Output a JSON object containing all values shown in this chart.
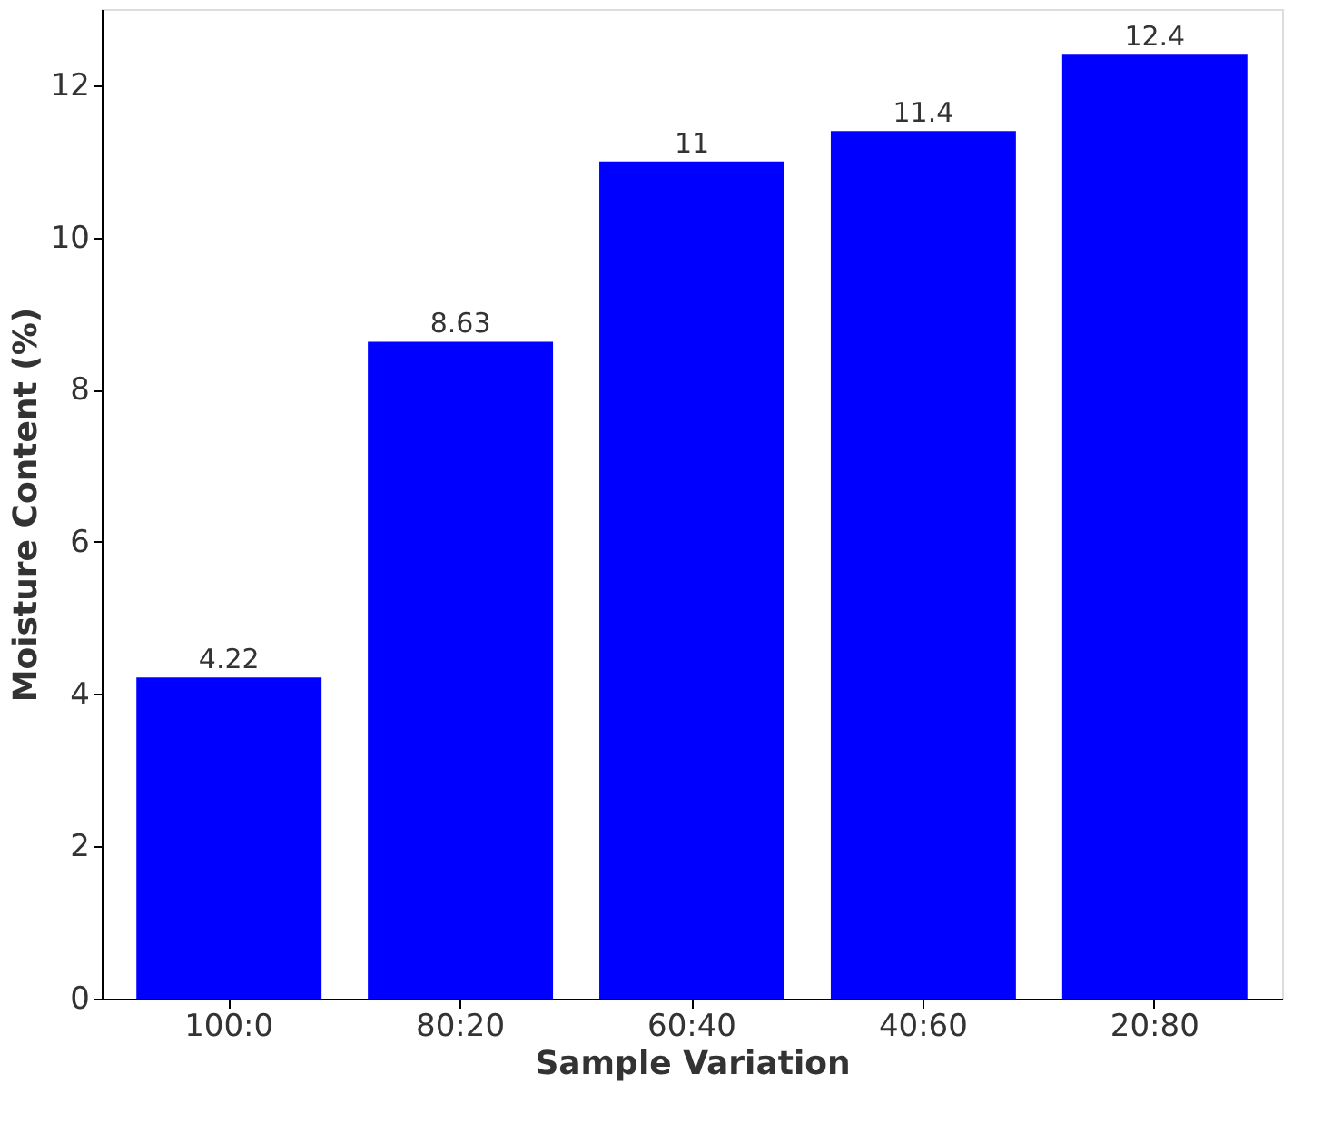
{
  "chart_data": {
    "type": "bar",
    "xlabel": "Sample Variation",
    "ylabel": "Moisture Content (%)",
    "categories": [
      "100:0",
      "80:20",
      "60:40",
      "40:60",
      "20:80"
    ],
    "values": [
      4.22,
      8.63,
      11,
      11.4,
      12.4
    ],
    "color": "#0000ff",
    "ylim": [
      0,
      13
    ],
    "yticks": [
      0,
      2,
      4,
      6,
      8,
      10,
      12
    ],
    "grid": false,
    "data_labels": true
  }
}
